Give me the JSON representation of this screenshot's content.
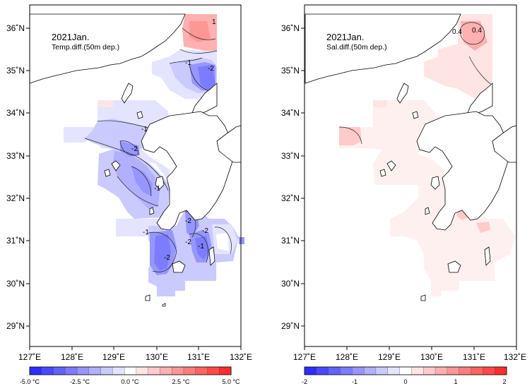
{
  "maps": [
    {
      "id": "temp",
      "title": "2021Jan.",
      "subtitle": "Temp.diff.(50m dep.)",
      "lon_labels": [
        "127˚E",
        "128˚E",
        "129˚E",
        "130˚E",
        "131˚E",
        "132˚E"
      ],
      "lat_labels": [
        "29˚N",
        "30˚N",
        "31˚N",
        "32˚N",
        "33˚N",
        "34˚N",
        "35˚N",
        "36˚N"
      ],
      "contour_labels": [
        "-1",
        "-2",
        "1",
        "-1",
        "-2",
        "-1",
        "-1",
        "-2",
        "-1",
        "-2",
        "-2",
        "-2"
      ],
      "colorbar": {
        "labels": [
          "-5.0 °C",
          "-2.5 °C",
          "0.0 °C",
          "2.5 °C",
          "5.0 °C"
        ],
        "colors": [
          "#2d2dff",
          "#4848ff",
          "#6262ff",
          "#7c7cff",
          "#9696ff",
          "#b0b0ff",
          "#cacaff",
          "#e4e4ff",
          "#ffffff",
          "#ffe4e4",
          "#ffcaca",
          "#ffb0b0",
          "#ff9696",
          "#ff7c7c",
          "#ff6262",
          "#ff4848",
          "#ff2d2d"
        ]
      }
    },
    {
      "id": "sal",
      "title": "2021Jan.",
      "subtitle": "Sal.diff.(50m dep.)",
      "lon_labels": [
        "127˚E",
        "128˚E",
        "129˚E",
        "130˚E",
        "131˚E",
        "132˚E"
      ],
      "lat_labels": [
        "29˚N",
        "30˚N",
        "31˚N",
        "32˚N",
        "33˚N",
        "34˚N",
        "35˚N",
        "36˚N"
      ],
      "contour_labels": [
        "0.4",
        "0.4"
      ],
      "colorbar": {
        "labels": [
          "-2",
          "-1",
          "0",
          "1",
          "2"
        ],
        "colors": [
          "#2d2dff",
          "#4848ff",
          "#6262ff",
          "#7c7cff",
          "#9696ff",
          "#b0b0ff",
          "#cacaff",
          "#e4e4ff",
          "#ffffff",
          "#ffe4e4",
          "#ffcaca",
          "#ffb0b0",
          "#ff9696",
          "#ff7c7c",
          "#ff6262",
          "#ff4848",
          "#ff2d2d"
        ]
      }
    }
  ],
  "colors": {
    "frame": "#000000",
    "coastline": "#000000",
    "sea_bg": "#ffffff"
  }
}
